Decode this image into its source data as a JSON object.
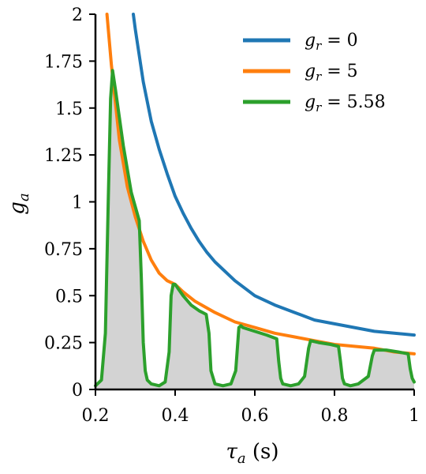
{
  "chart_data": {
    "type": "line",
    "xlabel_symbol": "τ",
    "xlabel_sub": "a",
    "xlabel_unit": " (s)",
    "ylabel_symbol": "g",
    "ylabel_sub": "a",
    "xlim": [
      0.2,
      1.0
    ],
    "ylim": [
      0,
      2.0
    ],
    "x_ticks": [
      0.2,
      0.4,
      0.6,
      0.8,
      1.0
    ],
    "x_tick_labels": [
      "0.2",
      "0.4",
      "0.6",
      "0.8",
      "1"
    ],
    "y_ticks": [
      0,
      0.25,
      0.5,
      0.75,
      1.0,
      1.25,
      1.5,
      1.75,
      2.0
    ],
    "y_tick_labels": [
      "0",
      "0.25",
      "0.5",
      "0.75",
      "1",
      "1.25",
      "1.5",
      "1.75",
      "2"
    ],
    "grid": false,
    "legend_position": "top-right",
    "legend": [
      {
        "symbol": "g",
        "sub": "r",
        "value": " = 0"
      },
      {
        "symbol": "g",
        "sub": "r",
        "value": " = 5"
      },
      {
        "symbol": "g",
        "sub": "r",
        "value": " = 5.58"
      }
    ],
    "series": [
      {
        "color": "#1f77b4",
        "x": [
          0.295,
          0.3,
          0.32,
          0.34,
          0.36,
          0.38,
          0.4,
          0.42,
          0.44,
          0.46,
          0.48,
          0.5,
          0.55,
          0.6,
          0.65,
          0.7,
          0.75,
          0.8,
          0.85,
          0.9,
          0.95,
          1.0
        ],
        "y": [
          2.0,
          1.92,
          1.64,
          1.43,
          1.28,
          1.15,
          1.03,
          0.94,
          0.86,
          0.79,
          0.73,
          0.68,
          0.58,
          0.5,
          0.45,
          0.41,
          0.37,
          0.35,
          0.33,
          0.31,
          0.3,
          0.29
        ]
      },
      {
        "color": "#ff7f0e",
        "x": [
          0.229,
          0.24,
          0.26,
          0.28,
          0.3,
          0.32,
          0.34,
          0.36,
          0.38,
          0.4,
          0.42,
          0.45,
          0.5,
          0.55,
          0.6,
          0.65,
          0.7,
          0.75,
          0.8,
          0.85,
          0.9,
          0.95,
          1.0
        ],
        "y": [
          2.0,
          1.73,
          1.33,
          1.08,
          0.92,
          0.79,
          0.69,
          0.62,
          0.58,
          0.56,
          0.52,
          0.47,
          0.41,
          0.36,
          0.33,
          0.3,
          0.28,
          0.26,
          0.24,
          0.23,
          0.22,
          0.2,
          0.19
        ]
      },
      {
        "color": "#2ca02c",
        "x": [
          0.2,
          0.215,
          0.225,
          0.232,
          0.238,
          0.243,
          0.25,
          0.27,
          0.29,
          0.31,
          0.315,
          0.32,
          0.325,
          0.33,
          0.34,
          0.36,
          0.375,
          0.385,
          0.39,
          0.395,
          0.4,
          0.42,
          0.44,
          0.46,
          0.478,
          0.485,
          0.49,
          0.5,
          0.52,
          0.54,
          0.552,
          0.56,
          0.565,
          0.57,
          0.6,
          0.63,
          0.655,
          0.66,
          0.665,
          0.67,
          0.69,
          0.71,
          0.725,
          0.735,
          0.74,
          0.76,
          0.79,
          0.81,
          0.815,
          0.82,
          0.825,
          0.84,
          0.86,
          0.885,
          0.895,
          0.9,
          0.93,
          0.96,
          0.985,
          0.99,
          0.995,
          1.0
        ],
        "y": [
          0.02,
          0.05,
          0.3,
          1.0,
          1.55,
          1.7,
          1.6,
          1.3,
          1.05,
          0.9,
          0.6,
          0.25,
          0.1,
          0.05,
          0.03,
          0.02,
          0.04,
          0.2,
          0.5,
          0.56,
          0.56,
          0.5,
          0.45,
          0.42,
          0.4,
          0.3,
          0.1,
          0.03,
          0.02,
          0.03,
          0.1,
          0.33,
          0.34,
          0.33,
          0.31,
          0.29,
          0.27,
          0.15,
          0.06,
          0.03,
          0.02,
          0.03,
          0.07,
          0.22,
          0.26,
          0.25,
          0.24,
          0.23,
          0.15,
          0.06,
          0.03,
          0.02,
          0.03,
          0.07,
          0.18,
          0.21,
          0.21,
          0.2,
          0.19,
          0.11,
          0.06,
          0.04
        ]
      }
    ],
    "fill_color": "#d3d3d3"
  }
}
